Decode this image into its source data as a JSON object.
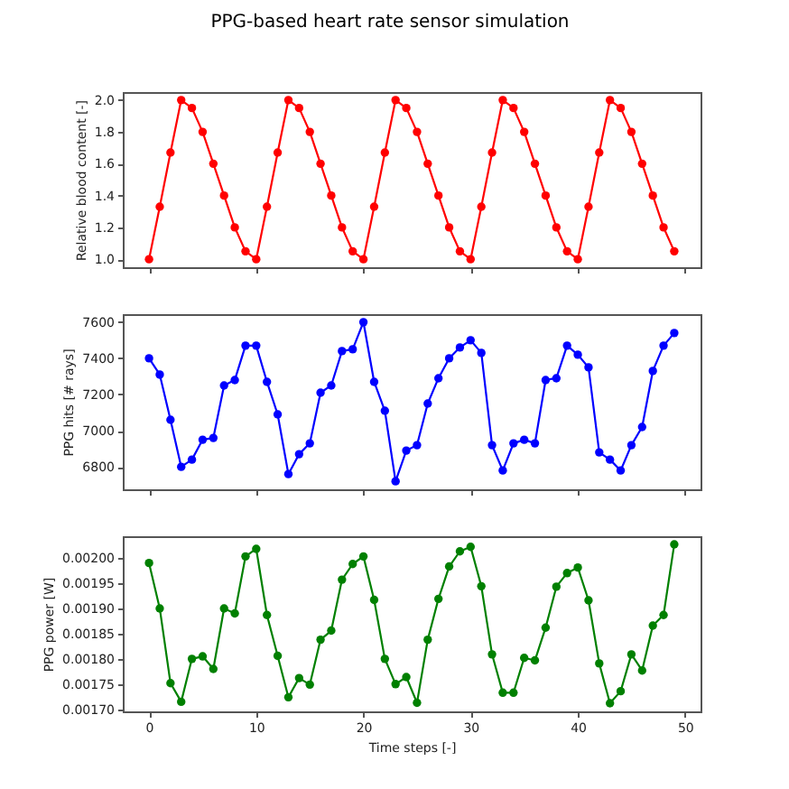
{
  "chart_data": [
    {
      "type": "line",
      "title": "PPG-based heart rate sensor simulation",
      "ylabel": "Relative blood content [-]",
      "color": "#ff0000",
      "marker": "circle",
      "line_style": "solid",
      "tick_labels": "y",
      "x": [
        0,
        1,
        2,
        3,
        4,
        5,
        6,
        7,
        8,
        9,
        10,
        11,
        12,
        13,
        14,
        15,
        16,
        17,
        18,
        19,
        20,
        21,
        22,
        23,
        24,
        25,
        26,
        27,
        28,
        29,
        30,
        31,
        32,
        33,
        34,
        35,
        36,
        37,
        38,
        39,
        40,
        41,
        42,
        43,
        44,
        45,
        46,
        47,
        48,
        49
      ],
      "values": [
        1.0,
        1.33,
        1.67,
        2.0,
        1.95,
        1.8,
        1.6,
        1.4,
        1.2,
        1.05,
        1.0,
        1.33,
        1.67,
        2.0,
        1.95,
        1.8,
        1.6,
        1.4,
        1.2,
        1.05,
        1.0,
        1.33,
        1.67,
        2.0,
        1.95,
        1.8,
        1.6,
        1.4,
        1.2,
        1.05,
        1.0,
        1.33,
        1.67,
        2.0,
        1.95,
        1.8,
        1.6,
        1.4,
        1.2,
        1.05,
        1.0,
        1.33,
        1.67,
        2.0,
        1.95,
        1.8,
        1.6,
        1.4,
        1.2,
        1.05
      ],
      "xlim": [
        -2.45,
        51.45
      ],
      "xticks": [
        0,
        10,
        20,
        30,
        40,
        50
      ],
      "ylim": [
        0.95,
        2.05
      ],
      "yticks": [
        {
          "value": 1,
          "label": "1.0"
        },
        1.2,
        1.4,
        1.6,
        1.8,
        {
          "value": 2,
          "label": "2.0"
        }
      ]
    },
    {
      "type": "line",
      "ylabel": "PPG hits [# rays]",
      "color": "#0000ff",
      "marker": "circle",
      "line_style": "solid",
      "tick_labels": "y",
      "x": [
        0,
        1,
        2,
        3,
        4,
        5,
        6,
        7,
        8,
        9,
        10,
        11,
        12,
        13,
        14,
        15,
        16,
        17,
        18,
        19,
        20,
        21,
        22,
        23,
        24,
        25,
        26,
        27,
        28,
        29,
        30,
        31,
        32,
        33,
        34,
        35,
        36,
        37,
        38,
        39,
        40,
        41,
        42,
        43,
        44,
        45,
        46,
        47,
        48,
        49
      ],
      "values": [
        7400,
        7310,
        7060,
        6800,
        6840,
        6950,
        6960,
        7250,
        7280,
        7470,
        7470,
        7270,
        7090,
        6760,
        6870,
        6930,
        7210,
        7250,
        7440,
        7450,
        7600,
        7270,
        7110,
        6720,
        6890,
        6920,
        7150,
        7290,
        7400,
        7460,
        7500,
        7430,
        6920,
        6780,
        6930,
        6950,
        6930,
        7280,
        7290,
        7470,
        7420,
        7350,
        6880,
        6840,
        6780,
        6920,
        7020,
        7330,
        7470,
        7540
      ],
      "xlim": [
        -2.45,
        51.45
      ],
      "xticks": [
        0,
        10,
        20,
        30,
        40,
        50
      ],
      "ylim": [
        6676,
        7644
      ],
      "yticks": [
        6800,
        7000,
        7200,
        7400,
        7600
      ]
    },
    {
      "type": "line",
      "xlabel": "Time steps [-]",
      "ylabel": "PPG power [W]",
      "color": "#008000",
      "marker": "circle",
      "line_style": "solid",
      "x": [
        0,
        1,
        2,
        3,
        4,
        5,
        6,
        7,
        8,
        9,
        10,
        11,
        12,
        13,
        14,
        15,
        16,
        17,
        18,
        19,
        20,
        21,
        22,
        23,
        24,
        25,
        26,
        27,
        28,
        29,
        30,
        31,
        32,
        33,
        34,
        35,
        36,
        37,
        38,
        39,
        40,
        41,
        42,
        43,
        44,
        45,
        46,
        47,
        48,
        49
      ],
      "values": [
        0.00199,
        0.0019,
        0.001752,
        0.001715,
        0.0018,
        0.001805,
        0.00178,
        0.0019,
        0.00189,
        0.002003,
        0.002018,
        0.001887,
        0.001806,
        0.001724,
        0.001762,
        0.001749,
        0.001838,
        0.001856,
        0.001957,
        0.001988,
        0.002003,
        0.001917,
        0.0018,
        0.00175,
        0.001764,
        0.001713,
        0.001838,
        0.001919,
        0.001983,
        0.002013,
        0.002022,
        0.001944,
        0.001809,
        0.001733,
        0.001733,
        0.001802,
        0.001797,
        0.001862,
        0.001943,
        0.00197,
        0.001981,
        0.001916,
        0.001791,
        0.001712,
        0.001736,
        0.001809,
        0.001777,
        0.001866,
        0.001887,
        0.002027
      ],
      "xlim": [
        -2.45,
        51.45
      ],
      "xticks": [
        0,
        10,
        20,
        30,
        40,
        50
      ],
      "ylim": [
        0.001696,
        0.002043
      ],
      "yticks": [
        {
          "value": 0.0017,
          "label": "0.00170"
        },
        {
          "value": 0.00175,
          "label": "0.00175"
        },
        {
          "value": 0.0018,
          "label": "0.00180"
        },
        {
          "value": 0.00185,
          "label": "0.00185"
        },
        {
          "value": 0.0019,
          "label": "0.00190"
        },
        {
          "value": 0.00195,
          "label": "0.00195"
        },
        {
          "value": 0.002,
          "label": "0.00200"
        }
      ]
    }
  ]
}
